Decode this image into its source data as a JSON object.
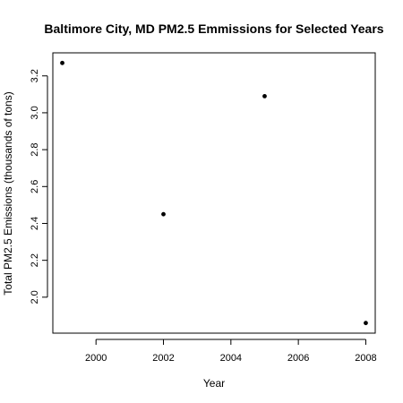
{
  "chart_data": {
    "type": "scatter",
    "title": "Baltimore City, MD PM2.5 Emmissions for Selected Years",
    "xlabel": "Year",
    "ylabel": "Total PM2.5 Emissions (thousands of tons)",
    "x": [
      1999,
      2002,
      2005,
      2008
    ],
    "y": [
      3.27,
      2.45,
      3.09,
      1.86
    ],
    "xlim": [
      1998.72,
      2008.28
    ],
    "ylim": [
      1.805,
      3.325
    ],
    "x_ticks": [
      2000,
      2002,
      2004,
      2006,
      2008
    ],
    "x_tick_labels": [
      "2000",
      "2002",
      "2004",
      "2006",
      "2008"
    ],
    "y_ticks": [
      2.0,
      2.2,
      2.4,
      2.6,
      2.8,
      3.0,
      3.2
    ],
    "y_tick_labels": [
      "2.0",
      "2.2",
      "2.4",
      "2.6",
      "2.8",
      "3.0",
      "3.2"
    ],
    "grid": false,
    "legend": "none",
    "point_color": "#000000"
  }
}
